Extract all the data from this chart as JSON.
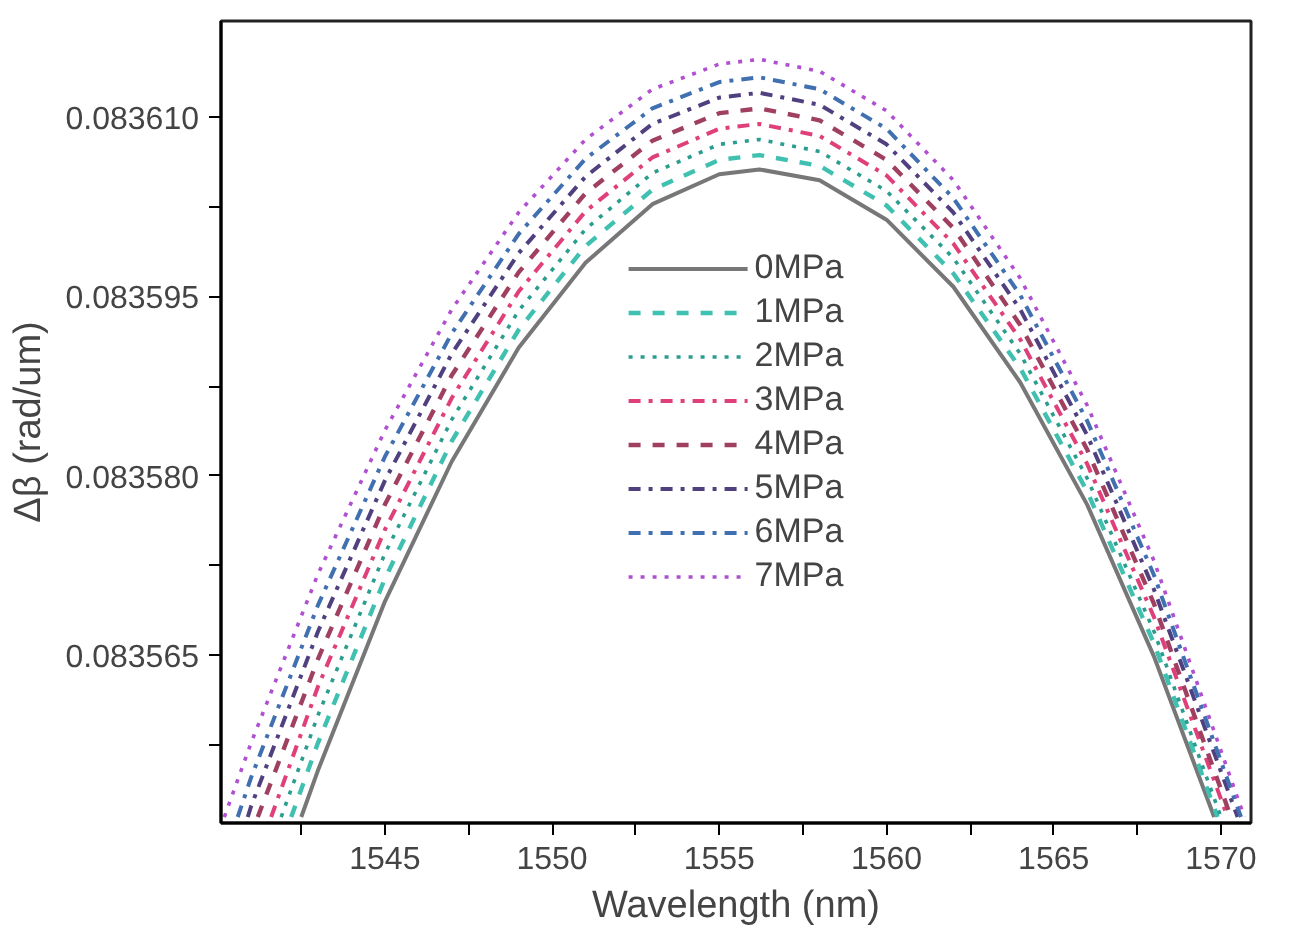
{
  "chart_data": {
    "type": "line",
    "xlabel": "Wavelength (nm)",
    "ylabel": "Δβ (rad/um)",
    "xlim": [
      1540.1,
      1570.9
    ],
    "ylim": [
      0.083551,
      0.083618
    ],
    "xticks": [
      {
        "value": 1542.5,
        "label": null
      },
      1545,
      {
        "value": 1547.5,
        "label": null
      },
      1550,
      {
        "value": 1552.5,
        "label": null
      },
      1555,
      {
        "value": 1557.5,
        "label": null
      },
      1560,
      {
        "value": 1562.5,
        "label": null
      },
      1565,
      {
        "value": 1567.5,
        "label": null
      },
      1570
    ],
    "yticks": [
      {
        "value": 0.0835575,
        "label": null
      },
      {
        "value": 0.083565,
        "label": "0.083565"
      },
      {
        "value": 0.0835725,
        "label": null
      },
      {
        "value": 0.08358,
        "label": "0.083580"
      },
      {
        "value": 0.0835875,
        "label": null
      },
      {
        "value": 0.083595,
        "label": "0.083595"
      },
      {
        "value": 0.0836025,
        "label": null
      },
      {
        "value": 0.08361,
        "label": "0.083610"
      }
    ],
    "grid": false,
    "legend": "center",
    "marker": "none",
    "series": [
      {
        "name": "0MPa",
        "color": "#777777",
        "line_style": "solid",
        "x": [
          1542.5,
          1543,
          1545,
          1547,
          1549,
          1551,
          1553,
          1555,
          1556.2,
          1558,
          1560,
          1562,
          1564,
          1566,
          1568,
          1569.8
        ],
        "values": [
          0.0835515,
          0.0835554,
          0.0835695,
          0.0835812,
          0.0835907,
          0.0835978,
          0.0836027,
          0.0836052,
          0.0836056,
          0.0836047,
          0.0836014,
          0.0835958,
          0.0835878,
          0.0835776,
          0.0835649,
          0.0835515
        ]
      },
      {
        "name": "1MPa",
        "color": "#40c0b0",
        "line_style": "dashed",
        "x": [
          1542.2,
          1543,
          1545,
          1547,
          1549,
          1551,
          1553,
          1555,
          1556.2,
          1558,
          1560,
          1562,
          1564,
          1566,
          1568,
          1569.9
        ],
        "values": [
          0.0835515,
          0.0835577,
          0.0835714,
          0.0835829,
          0.0835922,
          0.0835992,
          0.0836039,
          0.0836064,
          0.0836068,
          0.0836059,
          0.0836026,
          0.0835969,
          0.083589,
          0.0835787,
          0.083566,
          0.0835515
        ]
      },
      {
        "name": "2MPa",
        "color": "#2a9d8f",
        "line_style": "dotted",
        "x": [
          1541.9,
          1543,
          1545,
          1547,
          1549,
          1551,
          1553,
          1555,
          1556.2,
          1558,
          1560,
          1562,
          1564,
          1566,
          1568,
          1570
        ],
        "values": [
          0.0835515,
          0.08356,
          0.0835735,
          0.0835847,
          0.0835938,
          0.0836006,
          0.0836053,
          0.0836077,
          0.0836081,
          0.0836071,
          0.0836038,
          0.0835982,
          0.0835902,
          0.0835798,
          0.083567,
          0.0835515
        ]
      },
      {
        "name": "3MPa",
        "color": "#e0407a",
        "line_style": "dashdot",
        "x": [
          1541.6,
          1543,
          1545,
          1547,
          1549,
          1551,
          1553,
          1555,
          1556.2,
          1558,
          1560,
          1562,
          1564,
          1566,
          1568,
          1570.2
        ],
        "values": [
          0.0835515,
          0.0835624,
          0.0835755,
          0.0835865,
          0.0835954,
          0.0836021,
          0.0836066,
          0.083609,
          0.0836094,
          0.0836084,
          0.0836051,
          0.0835994,
          0.0835914,
          0.083581,
          0.0835682,
          0.0835515
        ]
      },
      {
        "name": "4MPa",
        "color": "#a04060",
        "line_style": "dashed",
        "x": [
          1541.2,
          1543,
          1545,
          1547,
          1549,
          1551,
          1553,
          1555,
          1556.2,
          1558,
          1560,
          1562,
          1564,
          1566,
          1568,
          1570.3
        ],
        "values": [
          0.0835515,
          0.0835647,
          0.0835776,
          0.0835884,
          0.083597,
          0.0836036,
          0.083608,
          0.0836103,
          0.0836107,
          0.0836097,
          0.0836064,
          0.0836007,
          0.0835926,
          0.0835822,
          0.0835693,
          0.0835515
        ]
      },
      {
        "name": "5MPa",
        "color": "#504080",
        "line_style": "dashdot",
        "x": [
          1540.9,
          1541,
          1543,
          1545,
          1547,
          1549,
          1551,
          1553,
          1555,
          1556.2,
          1558,
          1560,
          1562,
          1564,
          1566,
          1568,
          1570.5
        ],
        "values": [
          0.0835515,
          0.0835524,
          0.083567,
          0.0835796,
          0.0835902,
          0.0835986,
          0.083605,
          0.0836094,
          0.0836116,
          0.083612,
          0.083611,
          0.0836077,
          0.083602,
          0.0835939,
          0.0835834,
          0.0835705,
          0.0835515
        ]
      },
      {
        "name": "6MPa",
        "color": "#4070b0",
        "line_style": "dashdot",
        "x": [
          1540.6,
          1541,
          1543,
          1545,
          1547,
          1549,
          1551,
          1553,
          1555,
          1556.2,
          1558,
          1560,
          1562,
          1564,
          1566,
          1568,
          1570.6
        ],
        "values": [
          0.0835515,
          0.0835548,
          0.0835692,
          0.0835816,
          0.0835919,
          0.0836002,
          0.0836065,
          0.0836107,
          0.0836129,
          0.0836133,
          0.0836123,
          0.083609,
          0.0836032,
          0.0835951,
          0.0835846,
          0.0835717,
          0.0835515
        ]
      },
      {
        "name": "7MPa",
        "color": "#b050d0",
        "line_style": "dotted",
        "x": [
          1540.2,
          1541,
          1543,
          1545,
          1547,
          1549,
          1551,
          1553,
          1555,
          1556.2,
          1558,
          1560,
          1562,
          1564,
          1566,
          1568,
          1570.7
        ],
        "values": [
          0.0835515,
          0.0835577,
          0.0835718,
          0.0835838,
          0.0835939,
          0.083602,
          0.0836081,
          0.0836123,
          0.0836144,
          0.0836148,
          0.0836138,
          0.0836105,
          0.0836047,
          0.0835965,
          0.0835859,
          0.0835729,
          0.0835515
        ]
      }
    ]
  }
}
